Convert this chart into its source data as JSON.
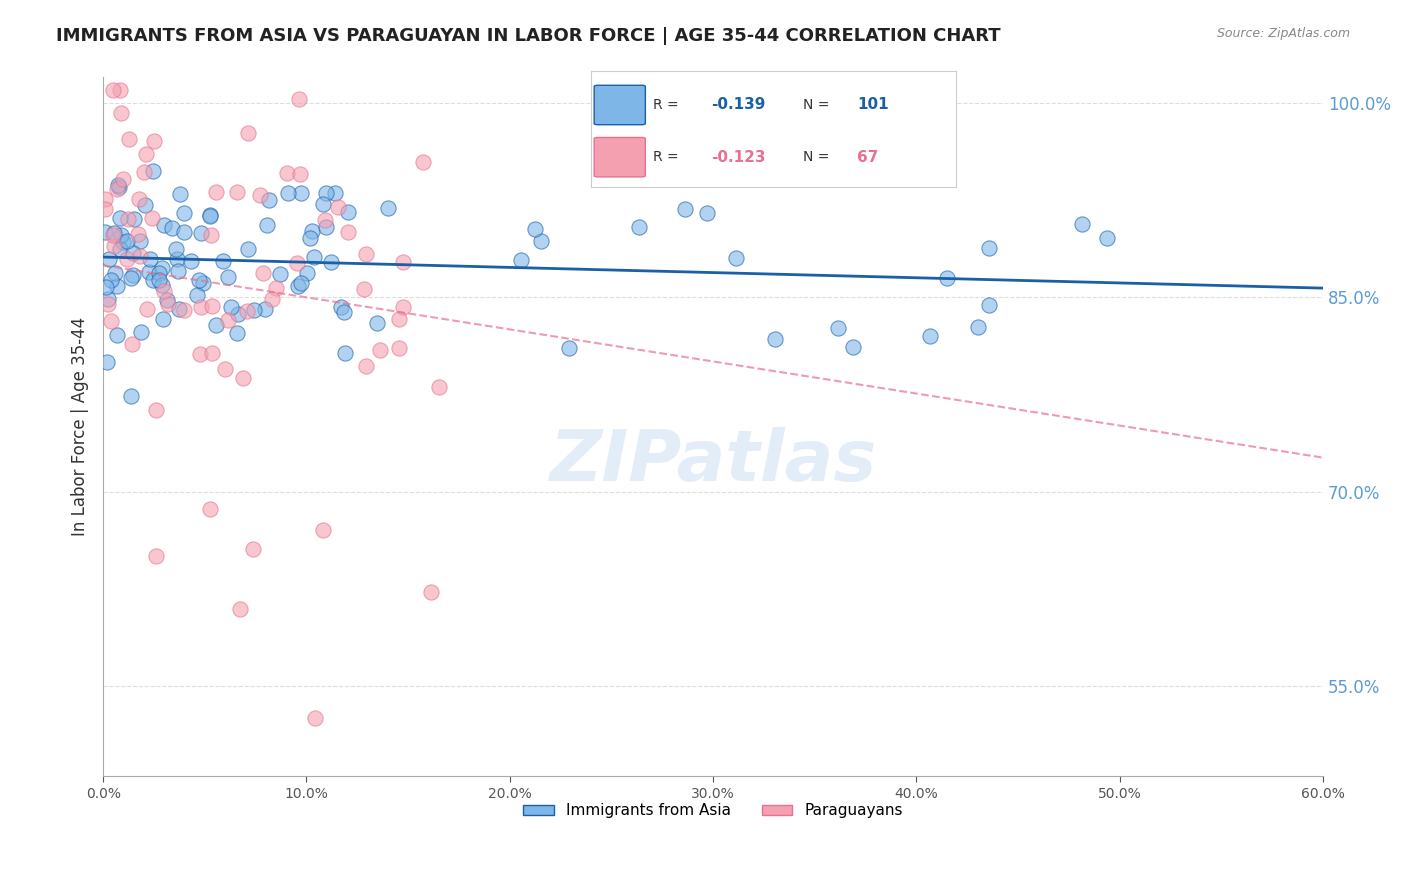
{
  "title": "IMMIGRANTS FROM ASIA VS PARAGUAYAN IN LABOR FORCE | AGE 35-44 CORRELATION CHART",
  "source": "Source: ZipAtlas.com",
  "ylabel": "In Labor Force | Age 35-44",
  "xlabel": "",
  "blue_label": "Immigrants from Asia",
  "pink_label": "Paraguayans",
  "blue_R": -0.139,
  "blue_N": 101,
  "pink_R": -0.123,
  "pink_N": 67,
  "blue_color": "#7EB6E8",
  "pink_color": "#F4A0B0",
  "blue_line_color": "#1A5FA8",
  "pink_line_color": "#E87090",
  "xmin": 0.0,
  "xmax": 0.6,
  "ymin": 0.48,
  "ymax": 1.02,
  "right_yticks": [
    1.0,
    0.85,
    0.7,
    0.55
  ],
  "right_ytick_labels": [
    "100.0%",
    "85.0%",
    "70.0%",
    "55.0%"
  ],
  "xtick_labels": [
    "0.0%",
    "10.0%",
    "20.0%",
    "30.0%",
    "40.0%",
    "50.0%",
    "60.0%"
  ],
  "xtick_vals": [
    0.0,
    0.1,
    0.2,
    0.3,
    0.4,
    0.5,
    0.6
  ],
  "watermark": "ZIPatlas",
  "background_color": "#FFFFFF",
  "grid_color": "#DDDDDD"
}
